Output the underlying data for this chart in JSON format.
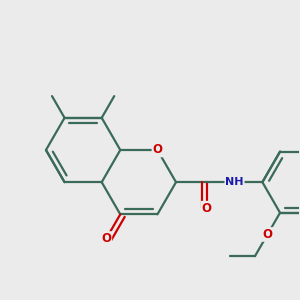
{
  "bg_color": "#ebebeb",
  "bond_color": "#3a6b58",
  "bond_width": 1.6,
  "dbo": 0.055,
  "colors": {
    "O": "#cc0000",
    "N": "#1a1aaa"
  },
  "fs": 8.5,
  "fs_nh": 8.0,
  "figsize": [
    3.0,
    3.0
  ],
  "dpi": 100,
  "xlim": [
    -0.1,
    3.1
  ],
  "ylim": [
    0.2,
    2.8
  ]
}
